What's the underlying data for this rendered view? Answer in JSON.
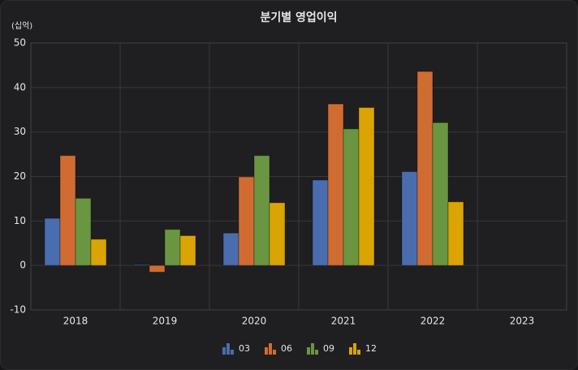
{
  "chart_data": {
    "type": "bar",
    "title": "분기별 영업이익",
    "y_unit_label": "(십억)",
    "categories": [
      "2018",
      "2019",
      "2020",
      "2021",
      "2022",
      "2023"
    ],
    "series": [
      {
        "name": "03",
        "color": "#4a6db0",
        "values": [
          10.6,
          0.2,
          7.3,
          19.2,
          21.1,
          null
        ]
      },
      {
        "name": "06",
        "color": "#d06c32",
        "values": [
          24.7,
          -1.5,
          19.9,
          36.3,
          43.6,
          null
        ]
      },
      {
        "name": "09",
        "color": "#6a9641",
        "values": [
          15.1,
          8.1,
          24.7,
          30.7,
          32.1,
          null
        ]
      },
      {
        "name": "12",
        "color": "#d9a404",
        "values": [
          5.9,
          6.7,
          14.1,
          35.5,
          14.3,
          null
        ]
      }
    ],
    "ylim": [
      -10,
      50
    ],
    "yticks": [
      -10,
      0,
      10,
      20,
      30,
      40,
      50
    ],
    "grid": true,
    "legend": "bottom"
  }
}
